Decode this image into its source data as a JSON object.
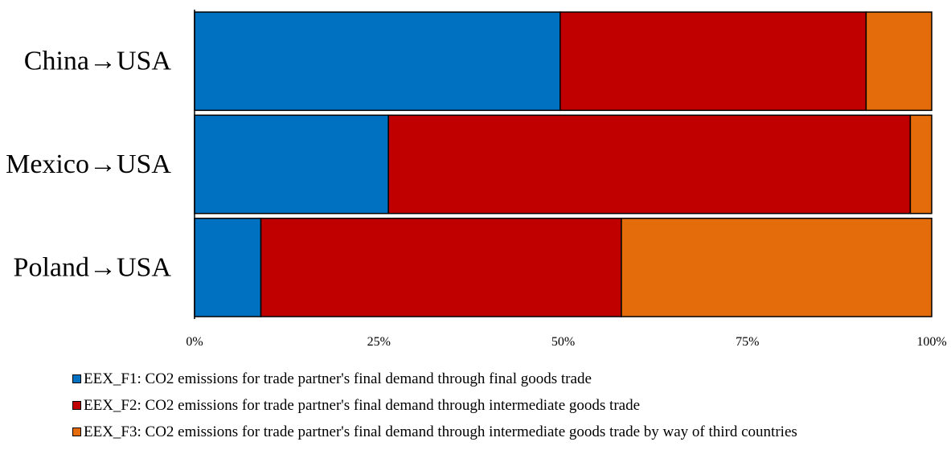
{
  "chart_data": {
    "type": "bar",
    "orientation": "horizontal",
    "stacked": "percent",
    "categories": [
      "China→USA",
      "Mexico→USA",
      "Poland→USA"
    ],
    "series": [
      {
        "name": "EEX_F1: CO2 emissions for trade partner's final demand through final goods trade",
        "color": "#0070C0",
        "values": [
          49.6,
          26.3,
          9.0
        ]
      },
      {
        "name": "EEX_F2: CO2 emissions for trade partner's final demand through intermediate goods trade",
        "color": "#C00000",
        "values": [
          41.5,
          70.8,
          48.9
        ]
      },
      {
        "name": "EEX_F3: CO2 emissions for trade partner's final demand through intermediate goods trade by way of third countries",
        "color": "#E46C0A",
        "values": [
          8.9,
          2.9,
          42.1
        ]
      }
    ],
    "x_ticks": [
      "0%",
      "25%",
      "50%",
      "75%",
      "100%"
    ],
    "xlim": [
      0,
      100
    ],
    "grid": false,
    "legend_position": "bottom-left"
  }
}
